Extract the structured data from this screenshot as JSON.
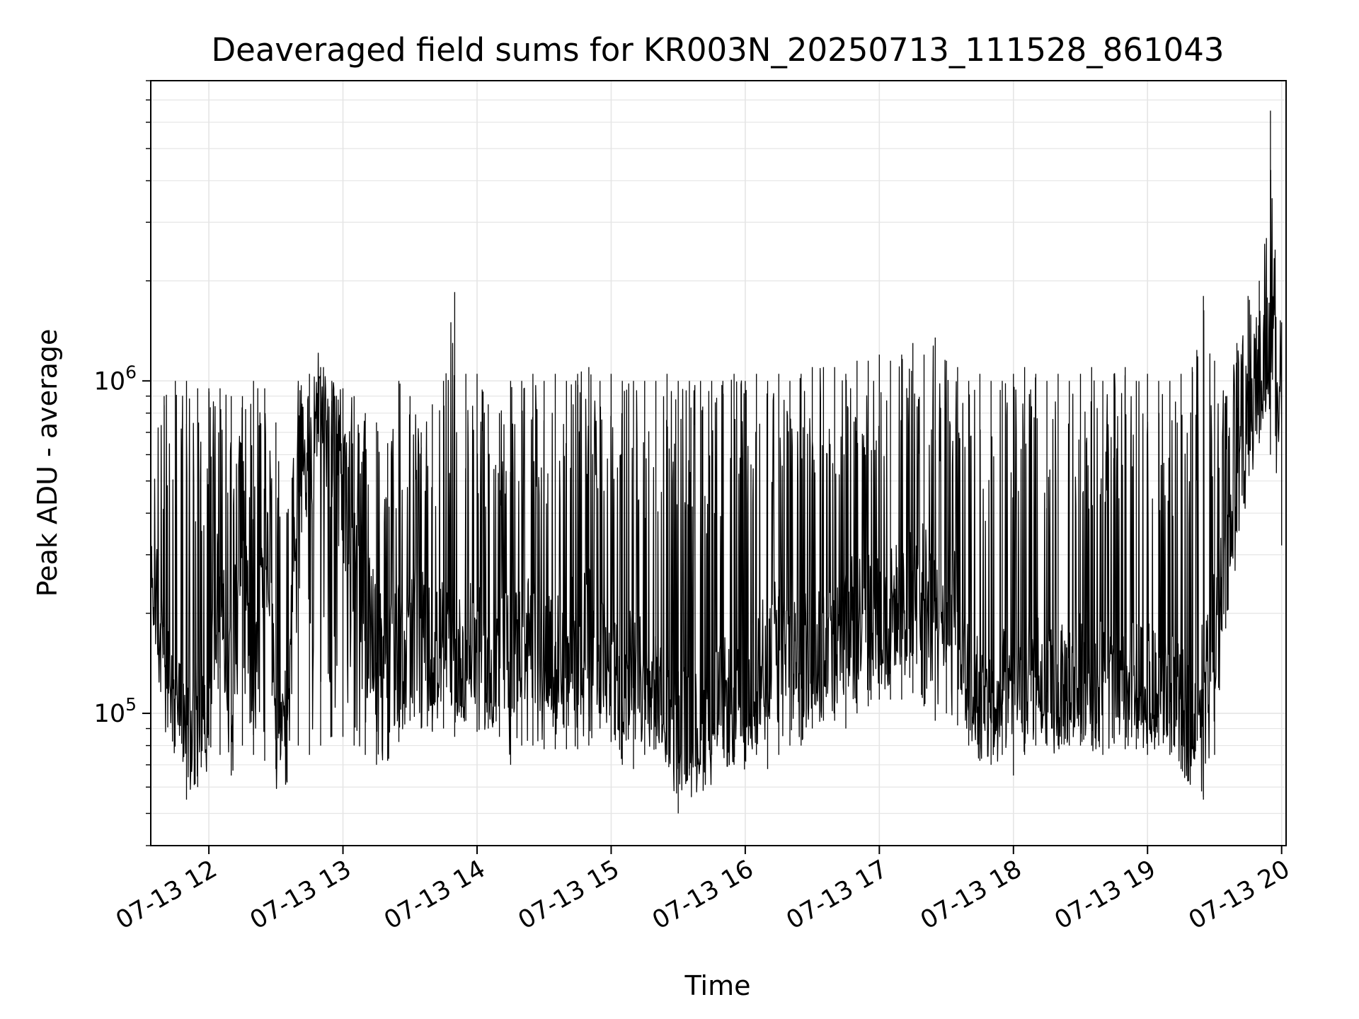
{
  "chart_data": {
    "type": "line",
    "title": "Deaveraged field sums for KR003N_20250713_111528_861043",
    "xlabel": "Time",
    "ylabel": "Peak ADU - average",
    "yscale": "log",
    "grid": true,
    "colors": {
      "line": "#000000",
      "grid": "#e5e5e5",
      "axes": "#000000",
      "background": "#ffffff"
    },
    "xlim": [
      "2025-07-13 11:34",
      "2025-07-13 20:02"
    ],
    "ylim": [
      40000,
      8000000
    ],
    "x_tick_labels": [
      "07-13 12",
      "07-13 13",
      "07-13 14",
      "07-13 15",
      "07-13 16",
      "07-13 17",
      "07-13 18",
      "07-13 19",
      "07-13 20"
    ],
    "y_tick_labels": [
      {
        "base": "10",
        "exponent": "5",
        "value": 100000
      },
      {
        "base": "10",
        "exponent": "6",
        "value": 1000000
      }
    ],
    "series": [
      {
        "x": [
          "2025-07-13 11:34",
          "2025-07-13 11:40",
          "2025-07-13 11:45",
          "2025-07-13 11:50",
          "2025-07-13 11:55",
          "2025-07-13 12:00",
          "2025-07-13 12:05",
          "2025-07-13 12:10",
          "2025-07-13 12:15",
          "2025-07-13 12:20",
          "2025-07-13 12:25",
          "2025-07-13 12:30",
          "2025-07-13 12:35",
          "2025-07-13 12:40",
          "2025-07-13 12:45",
          "2025-07-13 12:50",
          "2025-07-13 12:55",
          "2025-07-13 13:00",
          "2025-07-13 13:05",
          "2025-07-13 13:10",
          "2025-07-13 13:15",
          "2025-07-13 13:20",
          "2025-07-13 13:25",
          "2025-07-13 13:30",
          "2025-07-13 13:35",
          "2025-07-13 13:40",
          "2025-07-13 13:45",
          "2025-07-13 13:50",
          "2025-07-13 13:55",
          "2025-07-13 14:00",
          "2025-07-13 14:05",
          "2025-07-13 14:10",
          "2025-07-13 14:15",
          "2025-07-13 14:20",
          "2025-07-13 14:25",
          "2025-07-13 14:30",
          "2025-07-13 14:35",
          "2025-07-13 14:40",
          "2025-07-13 14:45",
          "2025-07-13 14:50",
          "2025-07-13 14:55",
          "2025-07-13 15:00",
          "2025-07-13 15:05",
          "2025-07-13 15:10",
          "2025-07-13 15:15",
          "2025-07-13 15:20",
          "2025-07-13 15:25",
          "2025-07-13 15:30",
          "2025-07-13 15:35",
          "2025-07-13 15:40",
          "2025-07-13 15:45",
          "2025-07-13 15:50",
          "2025-07-13 15:55",
          "2025-07-13 16:00",
          "2025-07-13 16:05",
          "2025-07-13 16:10",
          "2025-07-13 16:15",
          "2025-07-13 16:20",
          "2025-07-13 16:25",
          "2025-07-13 16:30",
          "2025-07-13 16:35",
          "2025-07-13 16:40",
          "2025-07-13 16:45",
          "2025-07-13 16:50",
          "2025-07-13 16:55",
          "2025-07-13 17:00",
          "2025-07-13 17:05",
          "2025-07-13 17:10",
          "2025-07-13 17:15",
          "2025-07-13 17:20",
          "2025-07-13 17:25",
          "2025-07-13 17:30",
          "2025-07-13 17:35",
          "2025-07-13 17:40",
          "2025-07-13 17:45",
          "2025-07-13 17:50",
          "2025-07-13 17:55",
          "2025-07-13 18:00",
          "2025-07-13 18:05",
          "2025-07-13 18:10",
          "2025-07-13 18:15",
          "2025-07-13 18:20",
          "2025-07-13 18:25",
          "2025-07-13 18:30",
          "2025-07-13 18:35",
          "2025-07-13 18:40",
          "2025-07-13 18:45",
          "2025-07-13 18:50",
          "2025-07-13 18:55",
          "2025-07-13 19:00",
          "2025-07-13 19:05",
          "2025-07-13 19:10",
          "2025-07-13 19:15",
          "2025-07-13 19:20",
          "2025-07-13 19:25",
          "2025-07-13 19:30",
          "2025-07-13 19:35",
          "2025-07-13 19:40",
          "2025-07-13 19:45",
          "2025-07-13 19:50",
          "2025-07-13 19:55",
          "2025-07-13 20:00"
        ],
        "y": [
          300000,
          130000,
          95000,
          85000,
          95000,
          90000,
          300000,
          110000,
          450000,
          100000,
          400000,
          90000,
          85000,
          500000,
          600000,
          900000,
          550000,
          450000,
          300000,
          200000,
          170000,
          140000,
          160000,
          170000,
          180000,
          150000,
          165000,
          140000,
          155000,
          160000,
          130000,
          145000,
          150000,
          165000,
          175000,
          150000,
          140000,
          170000,
          165000,
          180000,
          150000,
          135000,
          130000,
          140000,
          120000,
          110000,
          105000,
          95000,
          85000,
          90000,
          95000,
          110000,
          100000,
          105000,
          130000,
          150000,
          170000,
          160000,
          155000,
          160000,
          175000,
          165000,
          180000,
          200000,
          210000,
          190000,
          205000,
          215000,
          230000,
          240000,
          210000,
          220000,
          200000,
          130000,
          110000,
          100000,
          115000,
          120000,
          125000,
          130000,
          120000,
          115000,
          125000,
          130000,
          120000,
          125000,
          110000,
          115000,
          125000,
          120000,
          110000,
          120000,
          100000,
          95000,
          130000,
          180000,
          280000,
          450000,
          700000,
          1000000,
          1400000,
          900000
        ],
        "y_low": [
          200000,
          150000,
          110000,
          55000,
          60000,
          80000,
          75000,
          65000,
          80000,
          75000,
          72000,
          68000,
          62000,
          80000,
          75000,
          80000,
          85000,
          85000,
          80000,
          75000,
          70000,
          72000,
          82000,
          95000,
          90000,
          88000,
          90000,
          85000,
          95000,
          88000,
          90000,
          85000,
          70000,
          80000,
          80000,
          78000,
          78000,
          78000,
          78000,
          80000,
          90000,
          82000,
          70000,
          68000,
          75000,
          78000,
          75000,
          50000,
          65000,
          70000,
          75000,
          78000,
          70000,
          72000,
          75000,
          68000,
          75000,
          80000,
          80000,
          90000,
          95000,
          95000,
          90000,
          100000,
          105000,
          110000,
          110000,
          110000,
          115000,
          105000,
          95000,
          100000,
          92000,
          80000,
          72000,
          70000,
          75000,
          65000,
          75000,
          80000,
          80000,
          80000,
          80000,
          80000,
          80000,
          75000,
          82000,
          78000,
          78000,
          75000,
          80000,
          75000,
          68000,
          78000,
          55000,
          75000,
          180000,
          350000,
          600000,
          650000,
          600000,
          320000
        ],
        "y_high": [
          800000,
          900000,
          1000000,
          1000000,
          950000,
          950000,
          950000,
          900000,
          900000,
          1000000,
          950000,
          750000,
          400000,
          1000000,
          1050000,
          1100000,
          1000000,
          950000,
          900000,
          800000,
          750000,
          650000,
          1000000,
          900000,
          700000,
          850000,
          1000000,
          1850000,
          1050000,
          1050000,
          850000,
          800000,
          1000000,
          1000000,
          1050000,
          1000000,
          1050000,
          1000000,
          1050000,
          1100000,
          1000000,
          1050000,
          1000000,
          1000000,
          1000000,
          1000000,
          1050000,
          1000000,
          1000000,
          1000000,
          1000000,
          1000000,
          1050000,
          1000000,
          1050000,
          1000000,
          1050000,
          1000000,
          1050000,
          1100000,
          1100000,
          1100000,
          1050000,
          1150000,
          1150000,
          1200000,
          1150000,
          1200000,
          1300000,
          1200000,
          1350000,
          1150000,
          1100000,
          1000000,
          1050000,
          1000000,
          1000000,
          1050000,
          1100000,
          1050000,
          1000000,
          1050000,
          1000000,
          1050000,
          1100000,
          1000000,
          1050000,
          1100000,
          1000000,
          1050000,
          1000000,
          1000000,
          1050000,
          1100000,
          1800000,
          1150000,
          900000,
          1300000,
          1800000,
          2000000,
          6500000,
          1500000
        ]
      }
    ]
  }
}
